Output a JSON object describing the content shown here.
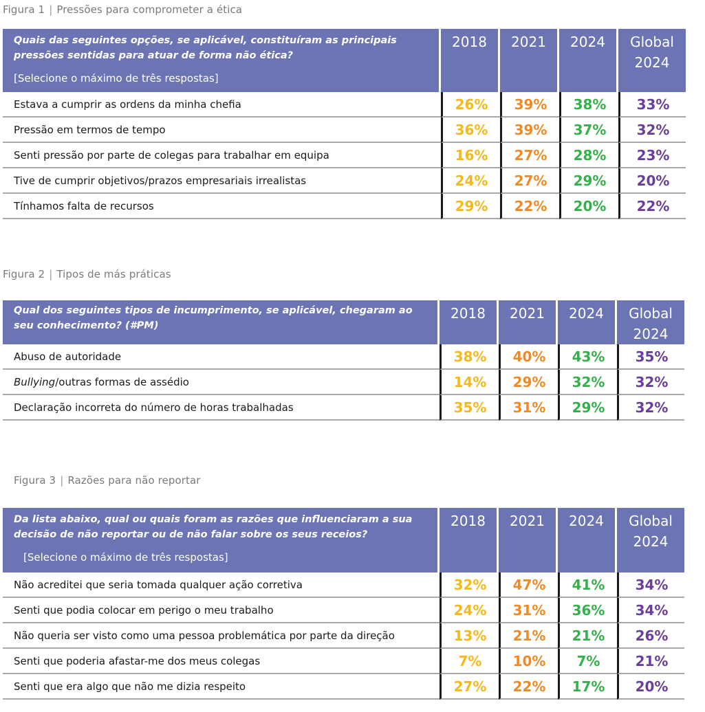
{
  "figures": [
    {
      "caption_label": "Figura 1",
      "caption_title": "Pressões para comprometer a ética",
      "question": "Quais das seguintes opções, se aplicável, constituíram as principais pressões sentidas para atuar de forma não ética?",
      "instruction": "[Selecione o máximo de três respostas]",
      "columns": [
        "2018",
        "2021",
        "2024",
        "Global 2024"
      ],
      "rows": [
        {
          "label": "Estava a cumprir as ordens da minha chefia",
          "values": [
            "26%",
            "39%",
            "38%",
            "33%"
          ]
        },
        {
          "label": "Pressão em termos de tempo",
          "values": [
            "36%",
            "39%",
            "37%",
            "32%"
          ]
        },
        {
          "label": "Senti pressão por parte de colegas para trabalhar em equipa",
          "values": [
            "16%",
            "27%",
            "28%",
            "23%"
          ]
        },
        {
          "label": "Tive de cumprir objetivos/prazos empresariais irrealistas",
          "values": [
            "24%",
            "27%",
            "29%",
            "20%"
          ]
        },
        {
          "label": "Tínhamos falta de recursos",
          "values": [
            "29%",
            "22%",
            "20%",
            "22%"
          ]
        }
      ]
    },
    {
      "caption_label": "Figura 2",
      "caption_title": "Tipos de más práticas",
      "question": "Qual dos seguintes tipos de incumprimento, se aplicável, chegaram ao seu conhecimento? (#PM)",
      "instruction": "",
      "columns": [
        "2018",
        "2021",
        "2024",
        "Global 2024"
      ],
      "rows": [
        {
          "label": "Abuso de autoridade",
          "values": [
            "38%",
            "40%",
            "43%",
            "35%"
          ]
        },
        {
          "label_italic": "Bullying",
          "label": "/outras formas de assédio",
          "values": [
            "14%",
            "29%",
            "32%",
            "32%"
          ]
        },
        {
          "label": "Declaração incorreta do número de horas trabalhadas",
          "values": [
            "35%",
            "31%",
            "29%",
            "32%"
          ]
        }
      ]
    },
    {
      "caption_label": "Figura 3",
      "caption_title": "Razões para não reportar",
      "question": "Da lista abaixo, qual ou quais foram as razões que influenciaram a sua decisão de não reportar ou de não falar sobre os seus receios?",
      "instruction": "[Selecione o máximo de três respostas]",
      "columns": [
        "2018",
        "2021",
        "2024",
        "Global 2024"
      ],
      "rows": [
        {
          "label": "Não acreditei que seria tomada qualquer ação corretiva",
          "values": [
            "32%",
            "47%",
            "41%",
            "34%"
          ]
        },
        {
          "label": "Senti que podia colocar em perigo o meu trabalho",
          "values": [
            "24%",
            "31%",
            "36%",
            "34%"
          ]
        },
        {
          "label": "Não queria ser visto como uma pessoa problemática por parte da direção",
          "values": [
            "13%",
            "21%",
            "21%",
            "26%"
          ]
        },
        {
          "label": "Senti que poderia afastar-me dos meus colegas",
          "values": [
            "7%",
            "10%",
            "7%",
            "21%"
          ]
        },
        {
          "label": "Senti que era algo que não me dizia respeito",
          "values": [
            "27%",
            "22%",
            "17%",
            "20%"
          ]
        }
      ]
    }
  ],
  "colors": {
    "header_bg": "#6c74b4",
    "col_2018": "#f5b91a",
    "col_2021": "#f08a24",
    "col_2024": "#35b04a",
    "col_global": "#6a3f9c"
  }
}
